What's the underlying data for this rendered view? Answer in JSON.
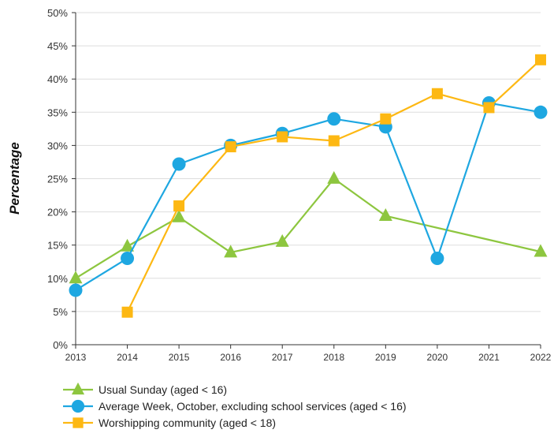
{
  "chart_data": {
    "type": "line",
    "title": "",
    "xlabel": "",
    "ylabel": "Percentage",
    "ylim": [
      0,
      50
    ],
    "yticks": [
      "0%",
      "5%",
      "10%",
      "15%",
      "20%",
      "25%",
      "30%",
      "35%",
      "40%",
      "45%",
      "50%"
    ],
    "x": [
      "2013",
      "2014",
      "2015",
      "2016",
      "2017",
      "2018",
      "2019",
      "2020",
      "2021",
      "2022"
    ],
    "grid": true,
    "legend_position": "bottom-left",
    "series": [
      {
        "name": "Usual Sunday (aged < 16)",
        "marker": "triangle",
        "color": "#8dc63f",
        "values": [
          10,
          14.8,
          19.2,
          13.9,
          15.5,
          25,
          19.4,
          null,
          null,
          14
        ]
      },
      {
        "name": "Average Week, October, excluding school services (aged < 16)",
        "marker": "circle",
        "color": "#1ea7e1",
        "values": [
          8.2,
          13,
          27.2,
          30,
          31.8,
          34,
          32.8,
          13,
          36.4,
          35
        ]
      },
      {
        "name": "Worshipping community (aged < 18)",
        "marker": "square",
        "color": "#fdb813",
        "values": [
          null,
          4.9,
          20.9,
          29.8,
          31.3,
          30.7,
          34,
          37.8,
          35.7,
          42.9
        ]
      }
    ]
  }
}
